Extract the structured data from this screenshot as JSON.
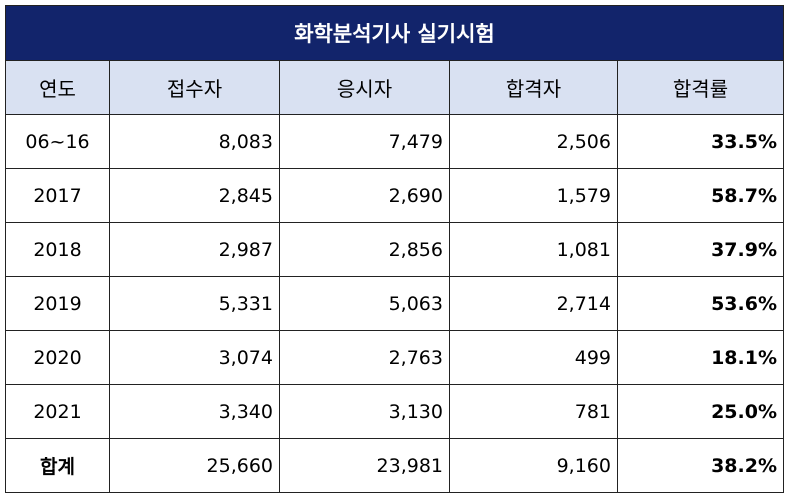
{
  "table": {
    "title": "화학분석기사 실기시험",
    "columns": [
      "연도",
      "접수자",
      "응시자",
      "합격자",
      "합격률"
    ],
    "rows": [
      {
        "year": "06~16",
        "applicants": "8,083",
        "examinees": "7,479",
        "passers": "2,506",
        "rate": "33.5%"
      },
      {
        "year": "2017",
        "applicants": "2,845",
        "examinees": "2,690",
        "passers": "1,579",
        "rate": "58.7%"
      },
      {
        "year": "2018",
        "applicants": "2,987",
        "examinees": "2,856",
        "passers": "1,081",
        "rate": "37.9%"
      },
      {
        "year": "2019",
        "applicants": "5,331",
        "examinees": "5,063",
        "passers": "2,714",
        "rate": "53.6%"
      },
      {
        "year": "2020",
        "applicants": "3,074",
        "examinees": "2,763",
        "passers": "499",
        "rate": "18.1%"
      },
      {
        "year": "2021",
        "applicants": "3,340",
        "examinees": "3,130",
        "passers": "781",
        "rate": "25.0%"
      }
    ],
    "total": {
      "year": "합계",
      "applicants": "25,660",
      "examinees": "23,981",
      "passers": "9,160",
      "rate": "38.2%"
    }
  },
  "colors": {
    "title_bg": "#12246b",
    "header_bg": "#d9e1f2",
    "border": "#222222"
  }
}
